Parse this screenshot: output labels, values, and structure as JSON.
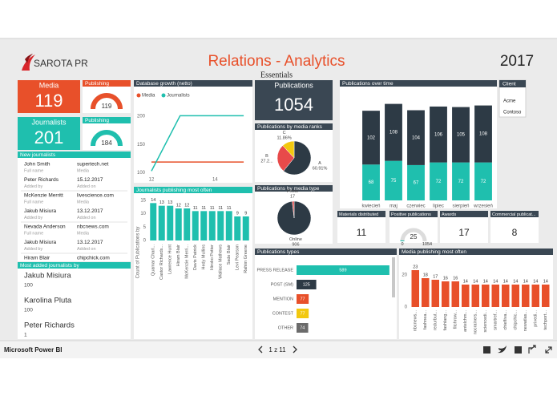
{
  "header": {
    "logo": "SAROTA PR",
    "title": "Relations - Analytics",
    "subtitle": "Essentials",
    "year": "2017"
  },
  "kpis": [
    {
      "title": "Media",
      "value": 119,
      "color": "#e8502a",
      "gauge_title": "Publishing",
      "gauge_value": 119
    },
    {
      "title": "Journalists",
      "value": 201,
      "color": "#1fbfae",
      "gauge_title": "Publishing",
      "gauge_value": 184
    }
  ],
  "new_journalists": {
    "title": "New journalists",
    "rows": [
      [
        {
          "text": "John Smith",
          "label": "Full name"
        },
        {
          "text": "supertech.net",
          "label": "Media"
        }
      ],
      [
        {
          "text": "Peter Richards",
          "label": "Added by"
        },
        {
          "text": "15.12.2017",
          "label": "Added on"
        }
      ],
      [
        {
          "text": "McKenzie Merritt",
          "label": "Full name"
        },
        {
          "text": "livescience.com",
          "label": "Media"
        }
      ],
      [
        {
          "text": "Jakub Misiura",
          "label": "Added by"
        },
        {
          "text": "13.12.2017",
          "label": "Added on"
        }
      ],
      [
        {
          "text": "Nevada Anderson",
          "label": "Full name"
        },
        {
          "text": "nbcnews.com",
          "label": "Media"
        }
      ],
      [
        {
          "text": "Jakub Misiura",
          "label": "Added by"
        },
        {
          "text": "13.12.2017",
          "label": "Added on"
        }
      ],
      [
        {
          "text": "Hiram Blair"
        },
        {
          "text": "chipchick.com"
        }
      ]
    ]
  },
  "most_added": {
    "title": "Most added journalists by",
    "rows": [
      {
        "name": "Jakub Misiura",
        "value": 100
      },
      {
        "name": "Karolina Pluta",
        "value": 100
      },
      {
        "name": "Peter Richards",
        "value": 1
      }
    ]
  },
  "publications": {
    "title": "Publications",
    "value": 1054
  },
  "slicer": {
    "title": "Client",
    "options": [
      "Acme",
      "Contoso"
    ]
  },
  "tiles": [
    {
      "title": "Materials distributed",
      "value": 11
    },
    {
      "title": "Positive publications",
      "value": 25,
      "min": 0,
      "max": 1054
    },
    {
      "title": "Awards",
      "value": 17
    },
    {
      "title": "Commercial publicat...",
      "value": 8
    }
  ],
  "footer": {
    "app": "Microsoft Power BI",
    "page": "1 z 11"
  },
  "chart_data": [
    {
      "type": "line",
      "title": "Database growth (netto)",
      "x": [
        12,
        12.9,
        14.9
      ],
      "series": [
        {
          "name": "Media",
          "color": "#e8502a",
          "values": [
            119,
            119,
            119
          ]
        },
        {
          "name": "Journalists",
          "color": "#1fbfae",
          "values": [
            103,
            201,
            201
          ]
        }
      ],
      "xlim": [
        11.9,
        15.1
      ],
      "xticks": [
        12,
        14
      ],
      "ylim": [
        95,
        220
      ],
      "yticks": [
        100,
        150,
        200
      ]
    },
    {
      "type": "bar",
      "title": "Journalists publishing most often",
      "y_label": "Count of Publications by",
      "categories": [
        "Quamar Charl...",
        "Castor Richards...",
        "Lawrence Hunt",
        "Hiram Blair",
        "McKenzie Merri...",
        "Davis Patrick",
        "Hedy Mullins",
        "Hiroko Potter",
        "Wallace Mathews",
        "Sade Blair",
        "Levi Pearson",
        "Rahim Greene"
      ],
      "values": [
        14,
        13,
        13,
        12,
        12,
        11,
        11,
        11,
        11,
        11,
        9,
        9
      ],
      "color": "#1fbfae",
      "ylim": [
        0,
        15
      ],
      "yticks": [
        0,
        5,
        10,
        15
      ]
    },
    {
      "type": "pie",
      "title": "Publications by media ranks",
      "categories": [
        "A",
        "B",
        "C"
      ],
      "values": [
        60.91,
        27.23,
        11.86
      ],
      "value_labels": [
        "60.91%",
        "27.2...",
        "11.86%"
      ],
      "colors": [
        "#2d3a45",
        "#e84a4a",
        "#f2c80f"
      ]
    },
    {
      "type": "pie",
      "title": "Publications by media type",
      "categories": [
        "Online",
        "Prime"
      ],
      "values": [
        906,
        17
      ],
      "colors": [
        "#2d3a45",
        "#e84a4a"
      ]
    },
    {
      "type": "stacked_bar",
      "title": "Publications over time",
      "categories": [
        "kwiecień",
        "maj",
        "czerwiec",
        "lipiec",
        "sierpień",
        "wrzesień"
      ],
      "series": [
        {
          "color": "#1fbfae",
          "values": [
            68,
            75,
            67,
            72,
            72,
            72
          ]
        },
        {
          "color": "#2d3a45",
          "values": [
            102,
            108,
            104,
            106,
            105,
            108
          ]
        }
      ],
      "ylim": [
        0,
        190
      ]
    },
    {
      "type": "hbar",
      "title": "Publications types",
      "categories": [
        "PRESS RELEASE",
        "POST (SM)",
        "MENTION",
        "CONTEST",
        "OTHER"
      ],
      "values": [
        589,
        125,
        77,
        77,
        74
      ],
      "colors": [
        "#1fbfae",
        "#2d3a45",
        "#e8502a",
        "#f2c80f",
        "#6b6b6b"
      ],
      "xlim": [
        0,
        610
      ]
    },
    {
      "type": "bar",
      "title": "Media publishing most often",
      "categories": [
        "nbcnews...",
        "fashnea...",
        "redurbut...",
        "fashlang...",
        "fitchrow...",
        "antelchm...",
        "nocrainers...",
        "sciencedi...",
        "smartref...",
        "chiefliva...",
        "chipchic...",
        "newatlas...",
        "privedi...",
        "techport..."
      ],
      "values": [
        23,
        18,
        17,
        16,
        16,
        14,
        14,
        14,
        14,
        14,
        14,
        14,
        14,
        14
      ],
      "color": "#e8502a",
      "ylim": [
        0,
        25
      ],
      "yticks": [
        0,
        20
      ]
    }
  ]
}
